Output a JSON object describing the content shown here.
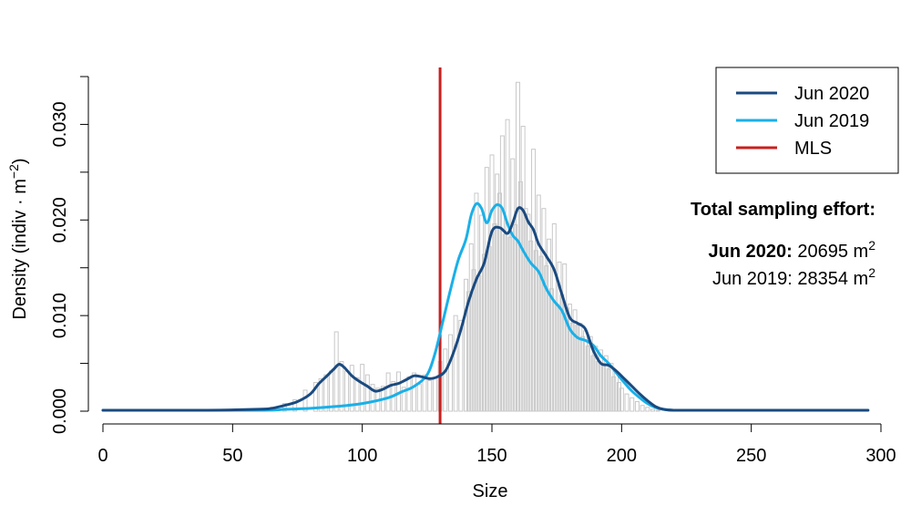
{
  "chart_data": {
    "type": "line",
    "xlabel": "Size",
    "ylabel": "Density (indiv · m",
    "ylabel_sup": "−2",
    "ylabel_close": ")",
    "xlim": [
      0,
      300
    ],
    "ylim": [
      0,
      0.035
    ],
    "x_ticks": [
      0,
      50,
      100,
      150,
      200,
      250,
      300
    ],
    "x_tick_labels": [
      "0",
      "50",
      "100",
      "150",
      "200",
      "250",
      "300"
    ],
    "y_ticks": [
      0,
      0.01,
      0.02,
      0.03
    ],
    "y_tick_labels": [
      "0.000",
      "0.010",
      "0.020",
      "0.030"
    ],
    "legend_position": "top-right",
    "series": [
      {
        "name": "Jun 2020",
        "color": "#1a4a80",
        "x": [
          0,
          40,
          60,
          65,
          70,
          75,
          80,
          83,
          86,
          89,
          91,
          93,
          96,
          99,
          102,
          105,
          108,
          111,
          114,
          117,
          120,
          123,
          126,
          129,
          132,
          135,
          138,
          141,
          144,
          147,
          150,
          153,
          156,
          158,
          160,
          162,
          164,
          166,
          168,
          171,
          174,
          177,
          180,
          183,
          186,
          189,
          192,
          195,
          198,
          201,
          204,
          207,
          210,
          213,
          216,
          220,
          230,
          250,
          270,
          295
        ],
        "y": [
          0.0001,
          0.0001,
          0.0002,
          0.0003,
          0.0006,
          0.001,
          0.0018,
          0.0028,
          0.0036,
          0.0044,
          0.0049,
          0.0046,
          0.0037,
          0.0031,
          0.0026,
          0.0021,
          0.0023,
          0.0027,
          0.0029,
          0.0033,
          0.0037,
          0.0036,
          0.0034,
          0.0036,
          0.0042,
          0.006,
          0.0085,
          0.0115,
          0.0138,
          0.0155,
          0.0188,
          0.0192,
          0.0186,
          0.0197,
          0.0212,
          0.021,
          0.0198,
          0.019,
          0.0175,
          0.0162,
          0.0148,
          0.0122,
          0.0098,
          0.0092,
          0.0086,
          0.0064,
          0.005,
          0.0048,
          0.0042,
          0.0034,
          0.0026,
          0.0018,
          0.0011,
          0.0005,
          0.0002,
          0.0001,
          0.0001,
          0.0001,
          0.0001,
          0.0001
        ]
      },
      {
        "name": "Jun 2019",
        "color": "#1ab0e8",
        "x": [
          0,
          60,
          70,
          80,
          90,
          100,
          110,
          115,
          120,
          125,
          128,
          131,
          134,
          137,
          140,
          142,
          144,
          146,
          148,
          150,
          152,
          154,
          156,
          158,
          160,
          162,
          165,
          168,
          171,
          174,
          177,
          180,
          183,
          186,
          189,
          192,
          195,
          198,
          201,
          204,
          207,
          210,
          213,
          216,
          220,
          230,
          250,
          270,
          295
        ],
        "y": [
          0.0001,
          0.0001,
          0.0002,
          0.0003,
          0.0005,
          0.0008,
          0.0014,
          0.002,
          0.0026,
          0.0038,
          0.006,
          0.0093,
          0.0127,
          0.0158,
          0.018,
          0.0205,
          0.0217,
          0.0212,
          0.0197,
          0.021,
          0.0216,
          0.0212,
          0.0196,
          0.0184,
          0.0178,
          0.0168,
          0.0155,
          0.0146,
          0.0128,
          0.0115,
          0.0105,
          0.0086,
          0.0077,
          0.0074,
          0.0069,
          0.0058,
          0.005,
          0.004,
          0.003,
          0.0021,
          0.0014,
          0.0008,
          0.0004,
          0.0002,
          0.0001,
          0.0001,
          0.0001,
          0.0001,
          0.0001
        ]
      }
    ],
    "vline": {
      "name": "MLS",
      "x": 130,
      "color": "#c8201f"
    },
    "histogram": {
      "color": "#c8c8c8",
      "centers": [
        70,
        74,
        78,
        82,
        84,
        86,
        88,
        90,
        92,
        94,
        96,
        98,
        100,
        102,
        104,
        106,
        108,
        110,
        112,
        114,
        116,
        118,
        120,
        122,
        124,
        126,
        128,
        130,
        132,
        134,
        136,
        138,
        140,
        141,
        142,
        143,
        144,
        145,
        146,
        147,
        148,
        149,
        150,
        151,
        152,
        153,
        154,
        155,
        156,
        157,
        158,
        159,
        160,
        161,
        162,
        163,
        164,
        165,
        166,
        167,
        168,
        169,
        170,
        171,
        172,
        173,
        174,
        175,
        176,
        177,
        178,
        179,
        180,
        181,
        182,
        183,
        184,
        185,
        186,
        187,
        188,
        189,
        190,
        191,
        192,
        193,
        194,
        195,
        196,
        197,
        198,
        199,
        200,
        202,
        204,
        206,
        208,
        210,
        212,
        214
      ],
      "heights": [
        0.0008,
        0.0012,
        0.0022,
        0.003,
        0.0034,
        0.0038,
        0.0042,
        0.0083,
        0.0052,
        0.0042,
        0.0048,
        0.0035,
        0.0049,
        0.0038,
        0.0028,
        0.0024,
        0.0026,
        0.004,
        0.0031,
        0.0041,
        0.0025,
        0.0036,
        0.004,
        0.0028,
        0.0038,
        0.0032,
        0.0035,
        0.0052,
        0.0065,
        0.008,
        0.01,
        0.0095,
        0.0138,
        0.0125,
        0.0175,
        0.0148,
        0.0228,
        0.0142,
        0.0205,
        0.0164,
        0.0255,
        0.0172,
        0.0268,
        0.0196,
        0.0248,
        0.0228,
        0.0288,
        0.0185,
        0.0305,
        0.0182,
        0.0264,
        0.0195,
        0.0344,
        0.024,
        0.0298,
        0.0212,
        0.0206,
        0.0178,
        0.0274,
        0.0168,
        0.0226,
        0.0162,
        0.0212,
        0.0152,
        0.018,
        0.0128,
        0.0196,
        0.0112,
        0.0156,
        0.0122,
        0.0154,
        0.0108,
        0.0112,
        0.0092,
        0.0106,
        0.009,
        0.0092,
        0.0078,
        0.0084,
        0.0068,
        0.0078,
        0.0058,
        0.0068,
        0.0052,
        0.0064,
        0.005,
        0.0058,
        0.0044,
        0.005,
        0.0036,
        0.004,
        0.003,
        0.0024,
        0.0018,
        0.0014,
        0.001,
        0.0006,
        0.0004,
        0.0002,
        0.0001
      ]
    }
  },
  "annotation": {
    "title": "Total sampling effort:",
    "line1_bold": "Jun 2020:",
    "line1_value": " 20695 m",
    "line1_sup": "2",
    "line2_value": "Jun 2019: 28354 m",
    "line2_sup": "2"
  },
  "legend": {
    "entries": [
      {
        "label": "Jun 2020",
        "color": "#1a4a80"
      },
      {
        "label": "Jun 2019",
        "color": "#1ab0e8"
      },
      {
        "label": "MLS",
        "color": "#c8201f"
      }
    ]
  }
}
